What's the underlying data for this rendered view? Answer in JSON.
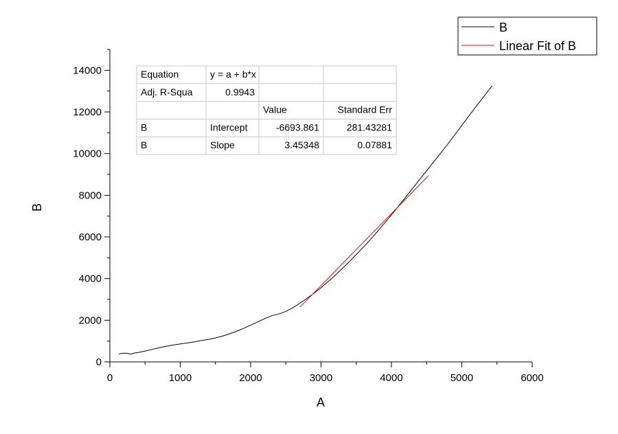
{
  "chart_data": {
    "type": "line",
    "xlabel": "A",
    "ylabel": "B",
    "xlim": [
      0,
      6000
    ],
    "ylim": [
      0,
      15000
    ],
    "x_ticks": [
      0,
      1000,
      2000,
      3000,
      4000,
      5000,
      6000
    ],
    "x_tick_labels": [
      "0",
      "1000",
      "2000",
      "3000",
      "4000",
      "5000",
      "6000"
    ],
    "y_ticks": [
      0,
      2000,
      4000,
      6000,
      8000,
      10000,
      12000,
      14000
    ],
    "y_tick_labels": [
      "0",
      "2000",
      "4000",
      "6000",
      "8000",
      "10000",
      "12000",
      "14000"
    ],
    "grid": false,
    "legend_position": "top-right",
    "legend": [
      "B",
      "Linear Fit of B"
    ],
    "series": [
      {
        "name": "B",
        "color": "#000000",
        "x": [
          130,
          200,
          260,
          300,
          350,
          400,
          500,
          600,
          700,
          800,
          900,
          1000,
          1100,
          1200,
          1300,
          1400,
          1500,
          1600,
          1700,
          1800,
          1900,
          2000,
          2100,
          2200,
          2300,
          2400,
          2500,
          2600,
          2700,
          2800,
          2900,
          3000,
          3200,
          3400,
          3600,
          3800,
          4000,
          4200,
          4400,
          4600,
          4800,
          5000,
          5200,
          5430
        ],
        "y": [
          390,
          420,
          410,
          370,
          430,
          450,
          520,
          600,
          680,
          750,
          810,
          860,
          910,
          960,
          1030,
          1080,
          1150,
          1240,
          1350,
          1470,
          1610,
          1760,
          1920,
          2080,
          2220,
          2300,
          2420,
          2600,
          2820,
          3050,
          3300,
          3560,
          4150,
          4800,
          5500,
          6250,
          7050,
          7900,
          8750,
          9600,
          10450,
          11350,
          12250,
          13250
        ]
      },
      {
        "name": "Linear Fit of B",
        "color": "#ff0000",
        "fit": true,
        "x": [
          2700,
          4530
        ],
        "y": [
          2630.5,
          8950.3
        ]
      }
    ],
    "stats_table": {
      "rows": [
        [
          "Equation",
          "y = a + b*x",
          "",
          ""
        ],
        [
          "Adj. R-Squa",
          "0.9943",
          "",
          ""
        ],
        [
          "",
          "",
          "Value",
          "Standard Err"
        ],
        [
          "B",
          "Intercept",
          "-6693.861",
          "281.43281"
        ],
        [
          "B",
          "Slope",
          "3.45348",
          "0.07881"
        ]
      ]
    }
  }
}
